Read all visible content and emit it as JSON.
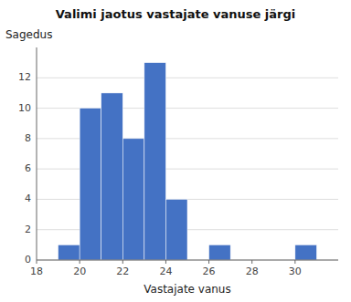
{
  "chart_data": {
    "type": "bar",
    "title": "Valimi jaotus vastajate vanuse järgi",
    "xlabel": "Vastajate vanus",
    "ylabel": "Sagedus",
    "x": [
      19,
      20,
      21,
      22,
      23,
      24,
      26,
      30
    ],
    "values": [
      1,
      10,
      11,
      8,
      13,
      4,
      1,
      1
    ],
    "color": "#4472C4",
    "xlim": [
      18,
      32
    ],
    "xticks": [
      18,
      20,
      22,
      24,
      26,
      28,
      30
    ],
    "ylim": [
      0,
      14
    ],
    "yticks": [
      0,
      2,
      4,
      6,
      8,
      10,
      12
    ],
    "grid": true
  }
}
